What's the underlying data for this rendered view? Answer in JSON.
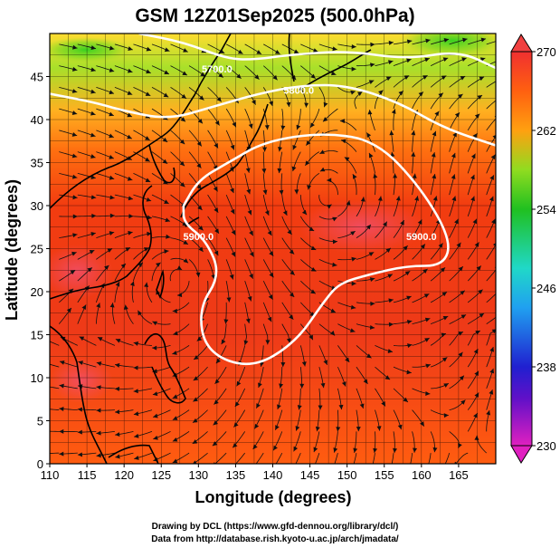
{
  "title": "GSM 12Z01Sep2025 (500.0hPa)",
  "xlabel": "Longitude (degrees)",
  "ylabel": "Latitude  (degrees)",
  "x_ticks": [
    "110",
    "115",
    "120",
    "125",
    "130",
    "135",
    "140",
    "145",
    "150",
    "155",
    "160",
    "165"
  ],
  "y_ticks": [
    "0",
    "5",
    "10",
    "15",
    "20",
    "25",
    "30",
    "35",
    "40",
    "45"
  ],
  "colorbar": {
    "ticks": [
      "230",
      "238",
      "246",
      "254",
      "262",
      "270"
    ]
  },
  "contour_labels": [
    {
      "text": "5700.0",
      "lon": 132.5,
      "lat": 45.5
    },
    {
      "text": "5800.0",
      "lon": 143.5,
      "lat": 43.0
    },
    {
      "text": "5900.0",
      "lon": 130.0,
      "lat": 26.0
    },
    {
      "text": "5900.0",
      "lon": 160.0,
      "lat": 26.0
    }
  ],
  "footer": {
    "line1": "Drawing by DCL (https://www.gfd-dennou.org/library/dcl/)",
    "line2": "Data from http://database.rish.kyoto-u.ac.jp/arch/jmadata/"
  },
  "chart_data": {
    "type": "heatmap",
    "xlim": [
      110,
      170
    ],
    "ylim": [
      0,
      50
    ],
    "colorbar_range": [
      230,
      270
    ],
    "contour_lines": [
      {
        "level": "5700.0",
        "points": [
          [
            122,
            50
          ],
          [
            128,
            49
          ],
          [
            134,
            47
          ],
          [
            138,
            47
          ],
          [
            142,
            47.5
          ],
          [
            150,
            48
          ],
          [
            158,
            47
          ],
          [
            165,
            48
          ],
          [
            170,
            46
          ]
        ]
      },
      {
        "level": "5800.0",
        "points": [
          [
            110,
            43
          ],
          [
            116,
            42
          ],
          [
            120,
            41
          ],
          [
            126,
            40
          ],
          [
            132,
            41.5
          ],
          [
            138,
            43
          ],
          [
            144,
            44
          ],
          [
            150,
            44
          ],
          [
            157,
            42
          ],
          [
            163,
            39
          ],
          [
            170,
            37
          ]
        ]
      },
      {
        "level": "5900.0",
        "points": [
          [
            128,
            30
          ],
          [
            130,
            33
          ],
          [
            134,
            35
          ],
          [
            139,
            37.5
          ],
          [
            147,
            38.5
          ],
          [
            154,
            37.5
          ],
          [
            160,
            32
          ],
          [
            164,
            26
          ],
          [
            163,
            23
          ],
          [
            158,
            23
          ],
          [
            153,
            22
          ],
          [
            149,
            21
          ],
          [
            147,
            19
          ],
          [
            143,
            14
          ],
          [
            137,
            11
          ],
          [
            131,
            13
          ],
          [
            130,
            18
          ],
          [
            133,
            22
          ],
          [
            131,
            26
          ],
          [
            128,
            28
          ],
          [
            128,
            30
          ]
        ]
      }
    ]
  }
}
